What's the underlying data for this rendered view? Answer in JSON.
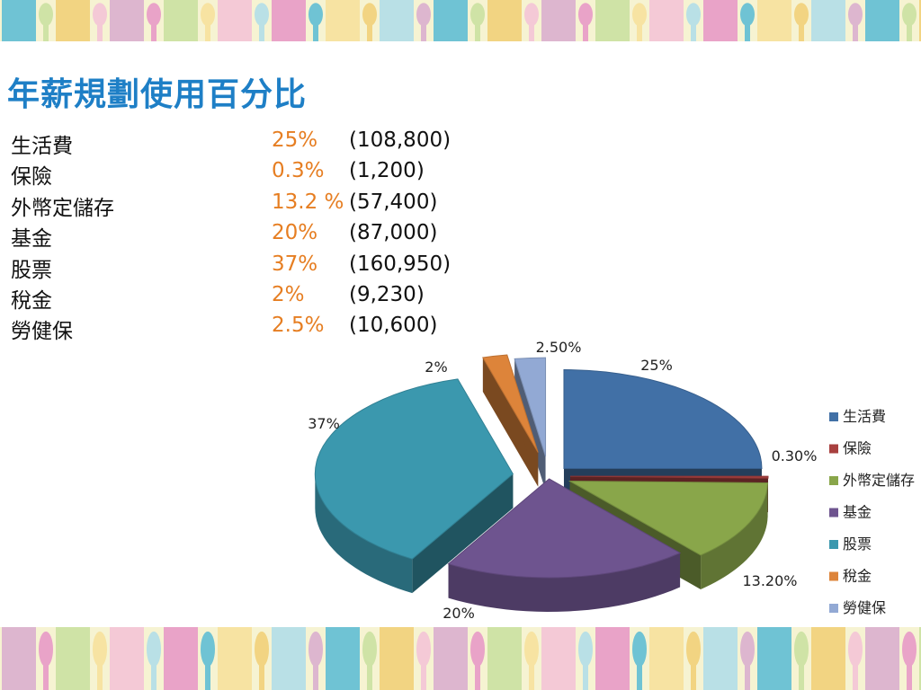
{
  "slide": {
    "title": "年薪規劃使用百分比",
    "rows": [
      {
        "label": "生活費",
        "pct": "25%",
        "amount": "(108,800)"
      },
      {
        "label": "保險",
        "pct": "0.3%",
        "amount": "(1,200)"
      },
      {
        "label": "外幣定儲存",
        "pct": "13.2 %",
        "amount": "(57,400)"
      },
      {
        "label": "基金",
        "pct": "20%",
        "amount": "(87,000)"
      },
      {
        "label": "股票",
        "pct": "37%",
        "amount": "(160,950)"
      },
      {
        "label": "稅金",
        "pct": "2%",
        "amount": "(9,230)"
      },
      {
        "label": "勞健保",
        "pct": "2.5%",
        "amount": "(10,600)"
      }
    ]
  },
  "decor": {
    "colors": [
      "#6fc3d4",
      "#f2d482",
      "#ddb6cf",
      "#cfe3a6",
      "#f4c9d6",
      "#e9a3c8",
      "#f7e3a2",
      "#b9e0e6"
    ]
  },
  "chart_data": {
    "type": "pie",
    "style": "3d-exploded",
    "categories": [
      "生活費",
      "保險",
      "外幣定儲存",
      "基金",
      "股票",
      "稅金",
      "勞健保"
    ],
    "values": [
      25,
      0.3,
      13.2,
      20,
      37,
      2,
      2.5
    ],
    "data_labels": [
      "25%",
      "0.30%",
      "13.20%",
      "20%",
      "37%",
      "2%",
      "2.50%"
    ],
    "colors": [
      "#4170a6",
      "#a8403f",
      "#89a64a",
      "#6e548f",
      "#3b98ae",
      "#dd843a",
      "#92a9d4"
    ],
    "legend": "right"
  }
}
